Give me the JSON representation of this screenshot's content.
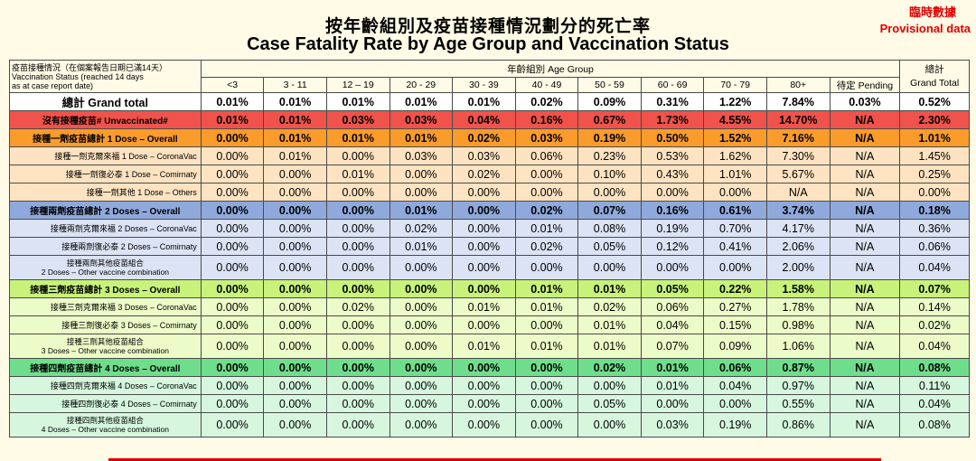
{
  "title_zh": "按年齡組別及疫苗接種情況劃分的死亡率",
  "title_en": "Case Fatality Rate by Age Group and Vaccination Status",
  "provisional_zh": "臨時數據",
  "provisional_en": "Provisional data",
  "header": {
    "status_zh": "疫苗接種情況（在個案報告日期已滿14天）",
    "status_en1": "Vaccination Status (reached 14 days",
    "status_en2": "as at case report date)",
    "age_group": "年齡組別 Age Group",
    "total_zh": "總計",
    "total_en": "Grand Total",
    "columns": [
      "<3",
      "3 - 11",
      "12 – 19",
      "20 - 29",
      "30 - 39",
      "40 - 49",
      "50 - 59",
      "60 - 69",
      "70 - 79",
      "80+",
      "待定 Pending"
    ]
  },
  "rows": [
    {
      "label": "總計 Grand total",
      "values": [
        "0.01%",
        "0.01%",
        "0.01%",
        "0.01%",
        "0.01%",
        "0.02%",
        "0.09%",
        "0.31%",
        "1.22%",
        "7.84%",
        "0.03%",
        "0.52%"
      ]
    },
    {
      "label": "沒有接種疫苗# Unvaccinated#",
      "values": [
        "0.01%",
        "0.01%",
        "0.03%",
        "0.03%",
        "0.04%",
        "0.16%",
        "0.67%",
        "1.73%",
        "4.55%",
        "14.70%",
        "N/A",
        "2.30%"
      ]
    },
    {
      "label": "接種一劑疫苗總計 1 Dose – Overall",
      "values": [
        "0.00%",
        "0.01%",
        "0.01%",
        "0.01%",
        "0.02%",
        "0.03%",
        "0.19%",
        "0.50%",
        "1.52%",
        "7.16%",
        "N/A",
        "1.01%"
      ]
    },
    {
      "label": "接種一劑克爾來福 1 Dose – CoronaVac",
      "values": [
        "0.00%",
        "0.01%",
        "0.00%",
        "0.03%",
        "0.03%",
        "0.06%",
        "0.23%",
        "0.53%",
        "1.62%",
        "7.30%",
        "N/A",
        "1.45%"
      ]
    },
    {
      "label": "接種一劑復必泰 1 Dose – Comirnaty",
      "values": [
        "0.00%",
        "0.00%",
        "0.01%",
        "0.00%",
        "0.02%",
        "0.00%",
        "0.10%",
        "0.43%",
        "1.01%",
        "5.67%",
        "N/A",
        "0.25%"
      ]
    },
    {
      "label": "接種一劑其他 1 Dose – Others",
      "values": [
        "0.00%",
        "0.00%",
        "0.00%",
        "0.00%",
        "0.00%",
        "0.00%",
        "0.00%",
        "0.00%",
        "0.00%",
        "N/A",
        "N/A",
        "0.00%"
      ]
    },
    {
      "label": "接種兩劑疫苗總計 2 Doses – Overall",
      "values": [
        "0.00%",
        "0.00%",
        "0.00%",
        "0.01%",
        "0.00%",
        "0.02%",
        "0.07%",
        "0.16%",
        "0.61%",
        "3.74%",
        "N/A",
        "0.18%"
      ]
    },
    {
      "label": "接種兩劑克爾來福 2 Doses – CoronaVac",
      "values": [
        "0.00%",
        "0.00%",
        "0.00%",
        "0.02%",
        "0.00%",
        "0.01%",
        "0.08%",
        "0.19%",
        "0.70%",
        "4.17%",
        "N/A",
        "0.36%"
      ]
    },
    {
      "label": "接種兩劑復必泰 2 Doses – Comirnaty",
      "values": [
        "0.00%",
        "0.00%",
        "0.00%",
        "0.01%",
        "0.00%",
        "0.02%",
        "0.05%",
        "0.12%",
        "0.41%",
        "2.06%",
        "N/A",
        "0.06%"
      ]
    },
    {
      "label1": "接種兩劑其他疫苗組合",
      "label2": "2 Doses – Other vaccine combination",
      "values": [
        "0.00%",
        "0.00%",
        "0.00%",
        "0.00%",
        "0.00%",
        "0.00%",
        "0.00%",
        "0.00%",
        "0.00%",
        "2.00%",
        "N/A",
        "0.04%"
      ]
    },
    {
      "label": "接種三劑疫苗總計 3 Doses – Overall",
      "values": [
        "0.00%",
        "0.00%",
        "0.00%",
        "0.00%",
        "0.00%",
        "0.01%",
        "0.01%",
        "0.05%",
        "0.22%",
        "1.58%",
        "N/A",
        "0.07%"
      ]
    },
    {
      "label": "接種三劑克爾來福 3 Doses – CoronaVac",
      "values": [
        "0.00%",
        "0.00%",
        "0.02%",
        "0.00%",
        "0.01%",
        "0.01%",
        "0.02%",
        "0.06%",
        "0.27%",
        "1.78%",
        "N/A",
        "0.14%"
      ]
    },
    {
      "label": "接種三劑復必泰 3 Doses – Comirnaty",
      "values": [
        "0.00%",
        "0.00%",
        "0.00%",
        "0.00%",
        "0.00%",
        "0.00%",
        "0.01%",
        "0.04%",
        "0.15%",
        "0.98%",
        "N/A",
        "0.02%"
      ]
    },
    {
      "label1": "接種三劑其他疫苗組合",
      "label2": "3 Doses – Other vaccine combination",
      "values": [
        "0.00%",
        "0.00%",
        "0.00%",
        "0.00%",
        "0.01%",
        "0.01%",
        "0.01%",
        "0.07%",
        "0.09%",
        "1.06%",
        "N/A",
        "0.04%"
      ]
    },
    {
      "label": "接種四劑疫苗總計 4 Doses – Overall",
      "values": [
        "0.00%",
        "0.00%",
        "0.00%",
        "0.00%",
        "0.00%",
        "0.00%",
        "0.02%",
        "0.01%",
        "0.06%",
        "0.87%",
        "N/A",
        "0.08%"
      ]
    },
    {
      "label": "接種四劑克爾來福 4 Doses – CoronaVac",
      "values": [
        "0.00%",
        "0.00%",
        "0.00%",
        "0.00%",
        "0.00%",
        "0.00%",
        "0.00%",
        "0.01%",
        "0.04%",
        "0.97%",
        "N/A",
        "0.11%"
      ]
    },
    {
      "label": "接種四劑復必泰 4 Doses – Comirnaty",
      "values": [
        "0.00%",
        "0.00%",
        "0.00%",
        "0.00%",
        "0.00%",
        "0.00%",
        "0.05%",
        "0.00%",
        "0.00%",
        "0.55%",
        "N/A",
        "0.04%"
      ]
    },
    {
      "label1": "接種四劑其他疫苗組合",
      "label2": "4 Doses – Other vaccine combination",
      "values": [
        "0.00%",
        "0.00%",
        "0.00%",
        "0.00%",
        "0.00%",
        "0.00%",
        "0.00%",
        "0.03%",
        "0.19%",
        "0.86%",
        "N/A",
        "0.08%"
      ]
    }
  ]
}
